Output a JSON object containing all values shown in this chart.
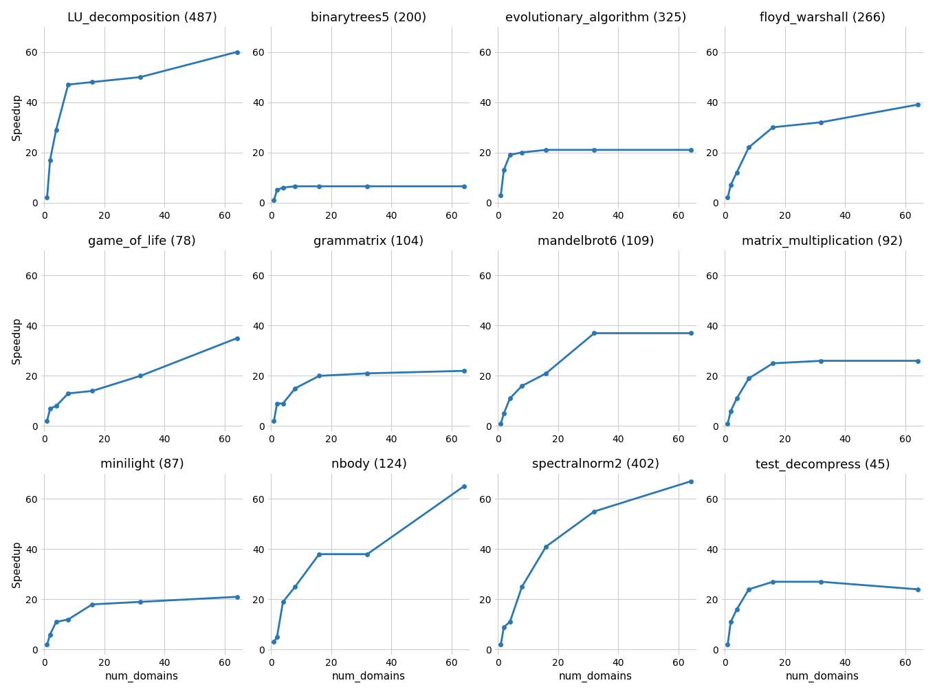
{
  "subplots": [
    {
      "title": "LU_decomposition (487)",
      "x": [
        1,
        2,
        4,
        8,
        16,
        32,
        64
      ],
      "y": [
        2.0,
        17.0,
        29.0,
        47.0,
        48.0,
        50.0,
        60.0
      ]
    },
    {
      "title": "binarytrees5 (200)",
      "x": [
        1,
        2,
        4,
        8,
        16,
        32,
        64
      ],
      "y": [
        1.0,
        5.0,
        6.0,
        6.5,
        6.5,
        6.5,
        6.5
      ]
    },
    {
      "title": "evolutionary_algorithm (325)",
      "x": [
        1,
        2,
        4,
        8,
        16,
        32,
        64
      ],
      "y": [
        3.0,
        13.0,
        19.0,
        20.0,
        21.0,
        21.0,
        21.0
      ]
    },
    {
      "title": "floyd_warshall (266)",
      "x": [
        1,
        2,
        4,
        8,
        16,
        32,
        64
      ],
      "y": [
        2.0,
        7.0,
        12.0,
        22.0,
        30.0,
        32.0,
        39.0
      ]
    },
    {
      "title": "game_of_life (78)",
      "x": [
        1,
        2,
        4,
        8,
        16,
        32,
        64
      ],
      "y": [
        2.0,
        7.0,
        8.0,
        13.0,
        14.0,
        20.0,
        35.0
      ]
    },
    {
      "title": "grammatrix (104)",
      "x": [
        1,
        2,
        4,
        8,
        16,
        32,
        64
      ],
      "y": [
        2.0,
        9.0,
        9.0,
        15.0,
        20.0,
        21.0,
        22.0
      ]
    },
    {
      "title": "mandelbrot6 (109)",
      "x": [
        1,
        2,
        4,
        8,
        16,
        32,
        64
      ],
      "y": [
        1.0,
        5.0,
        11.0,
        16.0,
        21.0,
        37.0,
        37.0
      ]
    },
    {
      "title": "matrix_multiplication (92)",
      "x": [
        1,
        2,
        4,
        8,
        16,
        32,
        64
      ],
      "y": [
        1.0,
        6.0,
        11.0,
        19.0,
        25.0,
        26.0,
        26.0
      ]
    },
    {
      "title": "minilight (87)",
      "x": [
        1,
        2,
        4,
        8,
        16,
        32,
        64
      ],
      "y": [
        2.0,
        6.0,
        11.0,
        12.0,
        18.0,
        19.0,
        21.0
      ]
    },
    {
      "title": "nbody (124)",
      "x": [
        1,
        2,
        4,
        8,
        16,
        32,
        64
      ],
      "y": [
        3.0,
        5.0,
        19.0,
        25.0,
        38.0,
        38.0,
        65.0
      ]
    },
    {
      "title": "spectralnorm2 (402)",
      "x": [
        1,
        2,
        4,
        8,
        16,
        32,
        64
      ],
      "y": [
        2.0,
        9.0,
        11.0,
        25.0,
        41.0,
        55.0,
        67.0
      ]
    },
    {
      "title": "test_decompress (45)",
      "x": [
        1,
        2,
        4,
        8,
        16,
        32,
        64
      ],
      "y": [
        2.0,
        11.0,
        16.0,
        24.0,
        27.0,
        27.0,
        24.0
      ]
    }
  ],
  "line_color": "#2878b5",
  "marker": "o",
  "marker_size": 4,
  "line_width": 2.0,
  "xlabel": "num_domains",
  "ylabel": "Speedup",
  "grid_color": "#cccccc",
  "bg_color": "#ffffff",
  "fig_bg_color": "#ffffff",
  "xticks": [
    0,
    20,
    40,
    60
  ],
  "yticks": [
    0,
    20,
    40,
    60
  ],
  "title_fontsize": 13,
  "label_fontsize": 11,
  "tick_fontsize": 10
}
